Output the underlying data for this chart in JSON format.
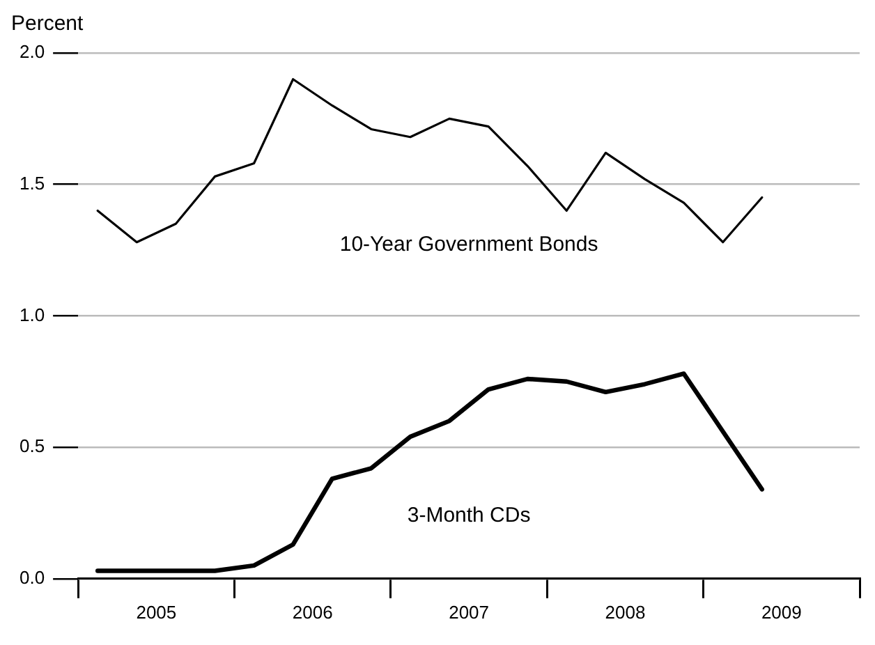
{
  "chart_data": {
    "type": "line",
    "ylabel": "Percent",
    "x": [
      2005.125,
      2005.375,
      2005.625,
      2005.875,
      2006.125,
      2006.375,
      2006.625,
      2006.875,
      2007.125,
      2007.375,
      2007.625,
      2007.875,
      2008.125,
      2008.375,
      2008.625,
      2008.875,
      2009.125,
      2009.375
    ],
    "series": [
      {
        "name": "10-Year Government Bonds",
        "color": "#000000",
        "values": [
          1.4,
          1.28,
          1.35,
          1.53,
          1.58,
          1.9,
          1.8,
          1.71,
          1.68,
          1.75,
          1.72,
          1.57,
          1.4,
          1.62,
          1.52,
          1.43,
          1.28,
          1.45
        ]
      },
      {
        "name": "3-Month CDs",
        "color": "#000000",
        "values": [
          0.03,
          0.03,
          0.03,
          0.03,
          0.05,
          0.13,
          0.38,
          0.42,
          0.54,
          0.6,
          0.72,
          0.76,
          0.75,
          0.71,
          0.74,
          0.78,
          0.56,
          0.34
        ]
      }
    ],
    "xlim": [
      2005,
      2010
    ],
    "xticks": [
      {
        "value": 2005,
        "label": null
      },
      {
        "value": 2005.5,
        "label": "2005"
      },
      {
        "value": 2006,
        "label": null
      },
      {
        "value": 2006.5,
        "label": "2006"
      },
      {
        "value": 2007,
        "label": null
      },
      {
        "value": 2007.5,
        "label": "2007"
      },
      {
        "value": 2008,
        "label": null
      },
      {
        "value": 2008.5,
        "label": "2008"
      },
      {
        "value": 2009,
        "label": null
      },
      {
        "value": 2009.5,
        "label": "2009"
      },
      {
        "value": 2010,
        "label": null
      }
    ],
    "ylim": [
      0,
      2
    ],
    "yticks": [
      {
        "value": 0,
        "label": "0.0"
      },
      0.5,
      {
        "value": 1,
        "label": "1.0"
      },
      1.5,
      {
        "value": 2,
        "label": "2.0"
      }
    ],
    "grid": "y",
    "legend": false,
    "marker": "none",
    "line_style": "solid"
  }
}
